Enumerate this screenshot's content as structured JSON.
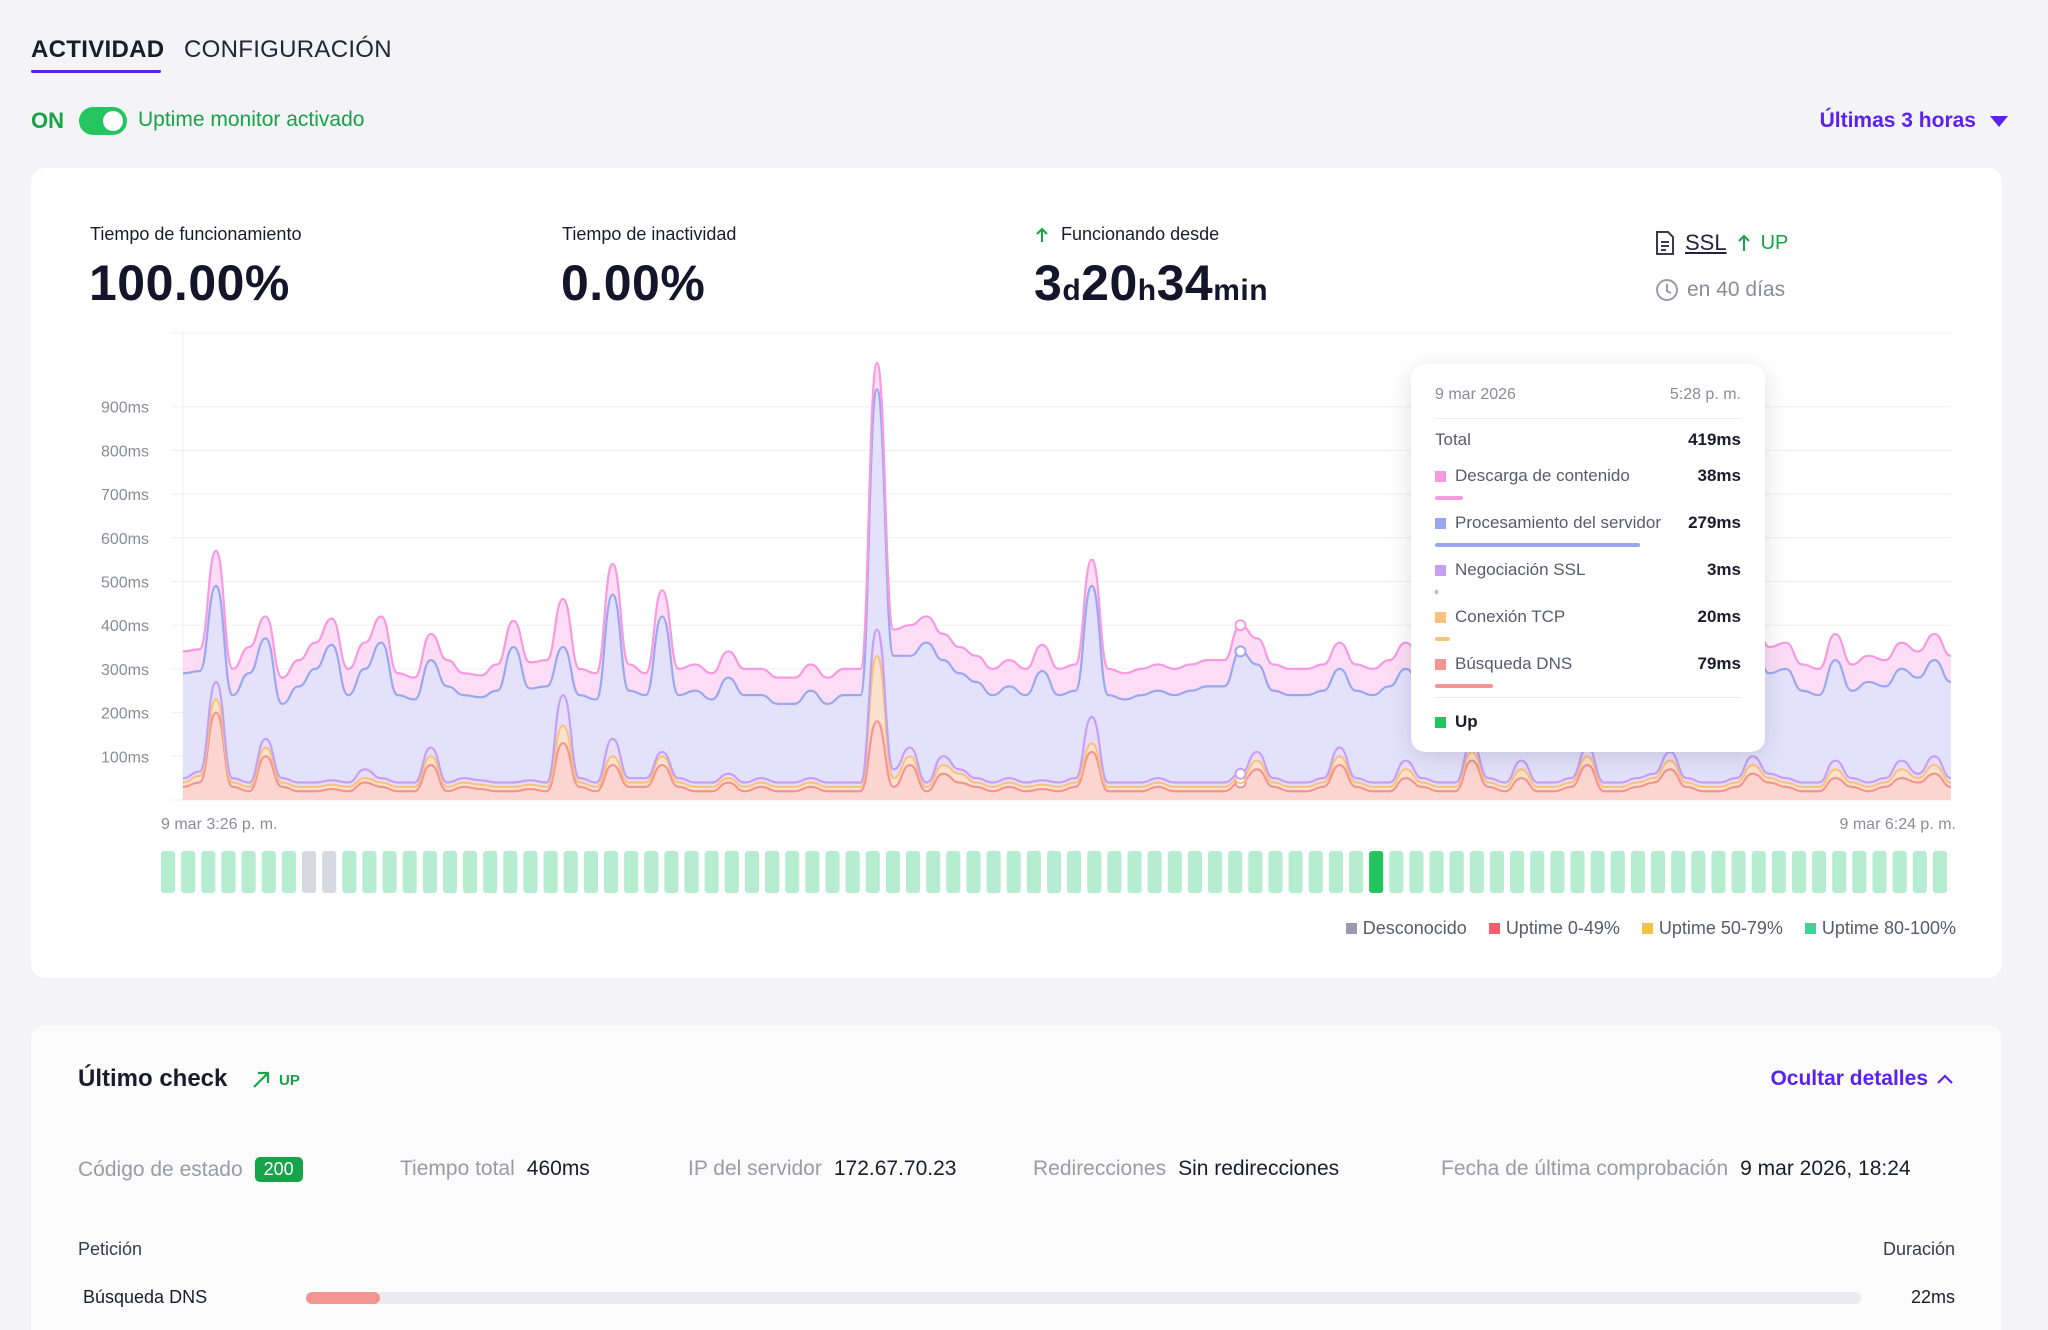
{
  "tabs": [
    {
      "label": "ACTIVIDAD",
      "active": true
    },
    {
      "label": "CONFIGURACIÓN",
      "active": false
    }
  ],
  "monitor": {
    "state": "ON",
    "label": "Uptime monitor activado"
  },
  "range": {
    "label": "Últimas 3 horas"
  },
  "stats": {
    "uptime": {
      "label": "Tiempo de funcionamiento",
      "value": "100.00%"
    },
    "downtime": {
      "label": "Tiempo de inactividad",
      "value": "0.00%"
    },
    "since": {
      "label": "Funcionando desde",
      "d": "3",
      "d_unit": "d",
      "h": "20",
      "h_unit": "h",
      "m": "34",
      "m_unit": "min"
    }
  },
  "ssl": {
    "label": "SSL",
    "status": "UP",
    "expiry": "en 40 días"
  },
  "chart_data": {
    "type": "area",
    "x_start_label": "9 mar 3:26 p. m.",
    "x_end_label": "9 mar 6:24 p. m.",
    "y_ticks": [
      "100ms",
      "200ms",
      "300ms",
      "400ms",
      "500ms",
      "600ms",
      "700ms",
      "800ms",
      "900ms"
    ],
    "ylim": [
      0,
      1000
    ],
    "series": [
      {
        "name": "Búsqueda DNS",
        "color": "#f49591",
        "values": [
          30,
          40,
          200,
          30,
          20,
          100,
          30,
          20,
          20,
          25,
          20,
          40,
          30,
          20,
          20,
          80,
          20,
          30,
          25,
          20,
          20,
          25,
          20,
          130,
          30,
          20,
          80,
          30,
          30,
          80,
          30,
          20,
          20,
          40,
          20,
          30,
          20,
          20,
          30,
          20,
          20,
          20,
          180,
          30,
          80,
          20,
          60,
          40,
          30,
          20,
          30,
          20,
          25,
          20,
          30,
          110,
          20,
          20,
          20,
          30,
          20,
          20,
          20,
          20,
          40,
          70,
          30,
          20,
          20,
          30,
          80,
          30,
          20,
          20,
          50,
          30,
          20,
          20,
          90,
          30,
          20,
          50,
          20,
          20,
          30,
          80,
          20,
          20,
          30,
          40,
          70,
          30,
          20,
          20,
          30,
          60,
          40,
          30,
          20,
          20,
          50,
          30,
          20,
          30,
          50,
          40,
          60,
          30
        ]
      },
      {
        "name": "Conexión TCP",
        "color": "#f9c27f",
        "values": [
          10,
          15,
          30,
          10,
          10,
          20,
          10,
          10,
          10,
          10,
          10,
          10,
          10,
          10,
          10,
          20,
          10,
          10,
          10,
          10,
          10,
          10,
          10,
          40,
          10,
          10,
          20,
          10,
          10,
          20,
          10,
          10,
          10,
          10,
          10,
          10,
          10,
          10,
          10,
          10,
          10,
          10,
          150,
          20,
          20,
          10,
          20,
          20,
          10,
          10,
          10,
          10,
          10,
          10,
          10,
          20,
          10,
          10,
          10,
          10,
          10,
          10,
          10,
          10,
          10,
          20,
          10,
          10,
          10,
          10,
          20,
          10,
          10,
          10,
          20,
          10,
          10,
          10,
          20,
          10,
          10,
          20,
          10,
          10,
          10,
          20,
          10,
          10,
          10,
          10,
          20,
          10,
          10,
          10,
          10,
          20,
          10,
          10,
          10,
          10,
          20,
          10,
          10,
          10,
          20,
          10,
          20,
          10
        ]
      },
      {
        "name": "Negociación SSL",
        "color": "#c4a1f4",
        "values": [
          10,
          10,
          40,
          10,
          10,
          20,
          10,
          10,
          10,
          10,
          10,
          20,
          10,
          10,
          10,
          20,
          10,
          10,
          10,
          10,
          10,
          10,
          10,
          70,
          10,
          10,
          40,
          10,
          10,
          10,
          10,
          10,
          10,
          10,
          10,
          10,
          10,
          10,
          10,
          10,
          10,
          10,
          60,
          20,
          20,
          10,
          20,
          10,
          10,
          10,
          10,
          10,
          10,
          10,
          10,
          60,
          10,
          10,
          10,
          10,
          10,
          10,
          10,
          10,
          10,
          20,
          10,
          10,
          10,
          10,
          20,
          10,
          10,
          10,
          20,
          10,
          10,
          10,
          20,
          10,
          10,
          20,
          10,
          10,
          10,
          20,
          10,
          10,
          10,
          10,
          20,
          10,
          10,
          10,
          10,
          20,
          10,
          10,
          10,
          10,
          20,
          10,
          10,
          10,
          20,
          10,
          20,
          10
        ]
      },
      {
        "name": "Procesamiento del servidor",
        "color": "#9aa8f0",
        "values": [
          240,
          230,
          220,
          190,
          250,
          230,
          170,
          220,
          260,
          310,
          200,
          230,
          310,
          200,
          190,
          200,
          220,
          190,
          190,
          210,
          310,
          210,
          220,
          110,
          190,
          190,
          330,
          200,
          190,
          310,
          190,
          210,
          190,
          220,
          200,
          190,
          180,
          180,
          200,
          180,
          200,
          200,
          550,
          260,
          210,
          320,
          220,
          220,
          220,
          200,
          210,
          200,
          250,
          200,
          200,
          300,
          200,
          190,
          200,
          200,
          200,
          210,
          220,
          220,
          280,
          200,
          200,
          200,
          200,
          200,
          180,
          200,
          200,
          220,
          210,
          210,
          200,
          230,
          200,
          210,
          200,
          200,
          200,
          210,
          230,
          200,
          200,
          210,
          200,
          200,
          240,
          200,
          230,
          200,
          200,
          270,
          230,
          250,
          210,
          200,
          230,
          200,
          230,
          210,
          210,
          220,
          220,
          220
        ]
      },
      {
        "name": "Descarga de contenido",
        "color": "#f79ae0",
        "values": [
          50,
          50,
          80,
          60,
          60,
          50,
          60,
          60,
          60,
          60,
          60,
          60,
          60,
          50,
          50,
          60,
          60,
          50,
          50,
          60,
          60,
          60,
          60,
          110,
          60,
          60,
          70,
          60,
          50,
          60,
          60,
          60,
          60,
          60,
          60,
          60,
          60,
          60,
          60,
          60,
          60,
          60,
          60,
          60,
          70,
          60,
          60,
          60,
          60,
          60,
          60,
          60,
          60,
          60,
          60,
          60,
          60,
          60,
          60,
          60,
          60,
          60,
          60,
          60,
          60,
          60,
          60,
          60,
          60,
          60,
          60,
          60,
          60,
          60,
          60,
          60,
          60,
          60,
          60,
          60,
          60,
          60,
          60,
          60,
          60,
          60,
          60,
          60,
          60,
          60,
          60,
          60,
          60,
          60,
          60,
          60,
          60,
          60,
          60,
          60,
          60,
          60,
          60,
          60,
          60,
          60,
          60,
          60
        ]
      }
    ],
    "tooltip": {
      "date": "9 mar 2026",
      "time": "5:28 p. m.",
      "total_label": "Total",
      "total": "419ms",
      "rows": [
        {
          "name": "Descarga de contenido",
          "value": "38ms",
          "color": "#f79ae0",
          "fraction": 0.09
        },
        {
          "name": "Procesamiento del servidor",
          "value": "279ms",
          "color": "#9aa8f0",
          "fraction": 0.67
        },
        {
          "name": "Negociación SSL",
          "value": "3ms",
          "color": "#c4a1f4",
          "fraction": 0.01
        },
        {
          "name": "Conexión TCP",
          "value": "20ms",
          "color": "#f9c27f",
          "fraction": 0.05
        },
        {
          "name": "Búsqueda DNS",
          "value": "79ms",
          "color": "#f49591",
          "fraction": 0.19
        }
      ],
      "status": "Up"
    },
    "uptime_bar": {
      "unknown_indices": [
        7,
        8
      ],
      "selected_index": 60,
      "count": 89,
      "colors": {
        "ok": "#b6ecd0",
        "unknown": "#d8d8e2",
        "selected": "#22c55e"
      }
    },
    "legend": [
      {
        "name": "Desconocido",
        "color": "#9a9aaf"
      },
      {
        "name": "Uptime 0-49%",
        "color": "#f55f6d"
      },
      {
        "name": "Uptime 50-79%",
        "color": "#f5c242"
      },
      {
        "name": "Uptime 80-100%",
        "color": "#3ed598"
      }
    ]
  },
  "last_check": {
    "title": "Último check",
    "status": "UP",
    "hide_label": "Ocultar detalles",
    "status_code_label": "Código de estado",
    "status_code": "200",
    "total_time_label": "Tiempo total",
    "total_time": "460ms",
    "ip_label": "IP del servidor",
    "ip": "172.67.70.23",
    "redirects_label": "Redirecciones",
    "redirects": "Sin redirecciones",
    "date_label": "Fecha de última comprobación",
    "date": "9 mar 2026, 18:24",
    "request_header": "Petición",
    "duration_header": "Duración",
    "requests": [
      {
        "name": "Búsqueda DNS",
        "value": "22ms",
        "fraction": 0.05
      }
    ]
  }
}
